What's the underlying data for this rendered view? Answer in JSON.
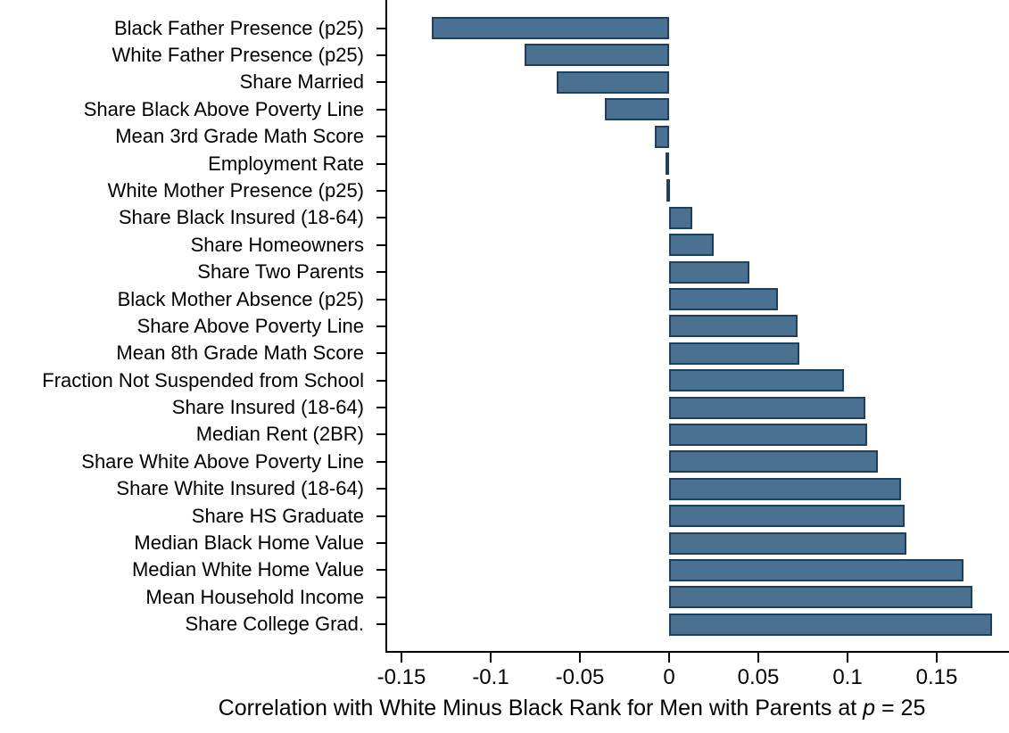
{
  "chart_data": {
    "type": "bar",
    "orientation": "horizontal",
    "title": "",
    "categories": [
      "Black Father Presence (p25)",
      "White Father Presence (p25)",
      "Share Married",
      "Share Black Above Poverty Line",
      "Mean 3rd Grade Math Score",
      "Employment Rate",
      "White Mother Presence (p25)",
      "Share Black Insured (18-64)",
      "Share Homeowners",
      "Share Two Parents",
      "Black Mother Absence (p25)",
      "Share Above Poverty Line",
      "Mean 8th Grade Math Score",
      "Fraction Not Suspended from School",
      "Share Insured (18-64)",
      "Median Rent (2BR)",
      "Share White Above Poverty Line",
      "Share White Insured (18-64)",
      "Share HS Graduate",
      "Median Black Home Value",
      "Median White Home Value",
      "Mean Household Income",
      "Share College Grad."
    ],
    "values": [
      -0.133,
      -0.081,
      -0.063,
      -0.036,
      -0.008,
      -0.002,
      -0.001,
      0.013,
      0.025,
      0.045,
      0.061,
      0.072,
      0.073,
      0.098,
      0.11,
      0.111,
      0.117,
      0.13,
      0.132,
      0.133,
      0.165,
      0.17,
      0.181
    ],
    "xlabel_prefix": "Correlation with White Minus Black Rank for Men with Parents at ",
    "xlabel_italic": "p",
    "xlabel_suffix": " = 25",
    "ylabel": "",
    "x_ticks": [
      -0.15,
      -0.1,
      -0.05,
      0,
      0.05,
      0.1,
      0.15
    ],
    "x_tick_labels": [
      "-0.15",
      "-0.1",
      "-0.05",
      "0",
      "0.05",
      "0.1",
      "0.15"
    ],
    "xlim": [
      -0.1585,
      0.1905
    ],
    "grid": false,
    "legend": null,
    "bar_color": "#4a7191",
    "bar_border_color": "#1e405e",
    "axis_color": "#000000"
  }
}
